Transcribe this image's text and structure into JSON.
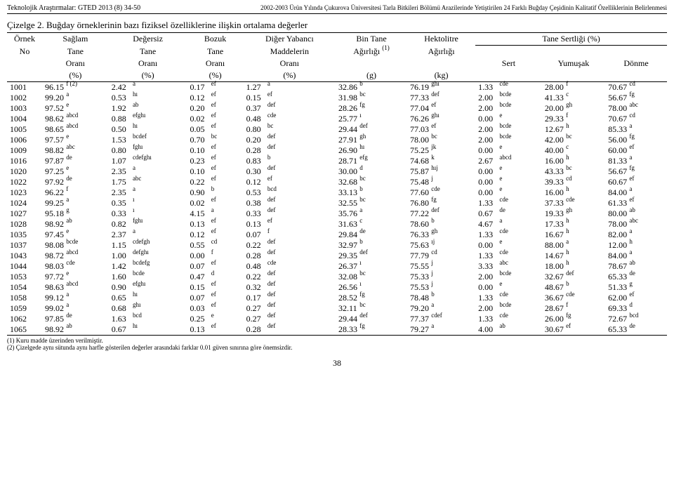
{
  "header": {
    "journal": "Teknolojik Araştırmalar: GTED 2013 (8) 34-50",
    "paper_title": "2002-2003 Ürün Yılında Çukurova Üniversitesi Tarla Bitkileri Bölümü Arazilerinde Yetiştirilen 24 Farklı Buğday Çeşidinin Kalitatif Özelliklerinin Belirlenmesi"
  },
  "caption_num": "Çizelge 2.",
  "caption_text": "Buğday örneklerinin bazı fiziksel özelliklerine ilişkin ortalama değerler",
  "columns": {
    "r1": [
      "Örnek",
      "Sağlam",
      "Değersiz",
      "Bozuk",
      "Diğer Yabancı",
      "Bin Tane",
      "Hektolitre",
      "Tane Sertliği (%)"
    ],
    "r2": [
      "No",
      "Tane",
      "Tane",
      "Tane",
      "Maddelerin",
      "Ağırlığı ",
      "Ağırlığı",
      ""
    ],
    "r2_sup": "(1)",
    "r3": [
      "",
      "Oranı",
      "Oranı",
      "Oranı",
      "Oranı",
      "",
      "",
      "Sert",
      "Yumuşak",
      "Dönme"
    ],
    "r4": [
      "",
      "(%)",
      "(%)",
      "(%)",
      "(%)",
      "(g)",
      "(kg)",
      "",
      "",
      ""
    ]
  },
  "rows": [
    {
      "no": "1001",
      "c": [
        [
          "96.15",
          "f (2)"
        ],
        [
          "2.42",
          "a"
        ],
        [
          "0.17",
          "ef"
        ],
        [
          "1.27",
          "a"
        ],
        [
          "32.86",
          "b"
        ],
        [
          "76.19",
          "ghı"
        ],
        [
          "1.33",
          "cde"
        ],
        [
          "28.00",
          "f"
        ],
        [
          "70.67",
          "cd"
        ]
      ]
    },
    {
      "no": "1002",
      "c": [
        [
          "99.20",
          "a"
        ],
        [
          "0.53",
          "hı"
        ],
        [
          "0.12",
          "ef"
        ],
        [
          "0.15",
          "ef"
        ],
        [
          "31.98",
          "bc"
        ],
        [
          "77.33",
          "def"
        ],
        [
          "2.00",
          "bcde"
        ],
        [
          "41.33",
          "c"
        ],
        [
          "56.67",
          "fg"
        ]
      ]
    },
    {
      "no": "1003",
      "c": [
        [
          "97.52",
          "e"
        ],
        [
          "1.92",
          "ab"
        ],
        [
          "0.20",
          "ef"
        ],
        [
          "0.37",
          "def"
        ],
        [
          "28.26",
          "fg"
        ],
        [
          "77.04",
          "ef"
        ],
        [
          "2.00",
          "bcde"
        ],
        [
          "20.00",
          "gh"
        ],
        [
          "78.00",
          "abc"
        ]
      ]
    },
    {
      "no": "1004",
      "c": [
        [
          "98.62",
          "abcd"
        ],
        [
          "0.88",
          "efghı"
        ],
        [
          "0.02",
          "ef"
        ],
        [
          "0.48",
          "cde"
        ],
        [
          "25.77",
          "ı"
        ],
        [
          "76.26",
          "ghı"
        ],
        [
          "0.00",
          "e"
        ],
        [
          "29.33",
          "f"
        ],
        [
          "70.67",
          "cd"
        ]
      ]
    },
    {
      "no": "1005",
      "c": [
        [
          "98.65",
          "abcd"
        ],
        [
          "0.50",
          "hı"
        ],
        [
          "0.05",
          "ef"
        ],
        [
          "0.80",
          "bc"
        ],
        [
          "29.44",
          "def"
        ],
        [
          "77.03",
          "ef"
        ],
        [
          "2.00",
          "bcde"
        ],
        [
          "12.67",
          "h"
        ],
        [
          "85.33",
          "a"
        ]
      ]
    },
    {
      "no": "1006",
      "c": [
        [
          "97.57",
          "e"
        ],
        [
          "1.53",
          "bcdef"
        ],
        [
          "0.70",
          "bc"
        ],
        [
          "0.20",
          "def"
        ],
        [
          "27.91",
          "gh"
        ],
        [
          "78.00",
          "bc"
        ],
        [
          "2.00",
          "bcde"
        ],
        [
          "42.00",
          "bc"
        ],
        [
          "56.00",
          "fg"
        ]
      ]
    },
    {
      "no": "1009",
      "c": [
        [
          "98.82",
          "abc"
        ],
        [
          "0.80",
          "fghı"
        ],
        [
          "0.10",
          "ef"
        ],
        [
          "0.28",
          "def"
        ],
        [
          "26.90",
          "hı"
        ],
        [
          "75.25",
          "jk"
        ],
        [
          "0.00",
          "e"
        ],
        [
          "40.00",
          "c"
        ],
        [
          "60.00",
          "ef"
        ]
      ]
    },
    {
      "no": "1016",
      "c": [
        [
          "97.87",
          "de"
        ],
        [
          "1.07",
          "cdefghı"
        ],
        [
          "0.23",
          "ef"
        ],
        [
          "0.83",
          "b"
        ],
        [
          "28.71",
          "efg"
        ],
        [
          "74.68",
          "k"
        ],
        [
          "2.67",
          "abcd"
        ],
        [
          "16.00",
          "h"
        ],
        [
          "81.33",
          "a"
        ]
      ]
    },
    {
      "no": "1020",
      "c": [
        [
          "97.25",
          "e"
        ],
        [
          "2.35",
          "a"
        ],
        [
          "0.10",
          "ef"
        ],
        [
          "0.30",
          "def"
        ],
        [
          "30.00",
          "d"
        ],
        [
          "75.87",
          "hıj"
        ],
        [
          "0.00",
          "e"
        ],
        [
          "43.33",
          "bc"
        ],
        [
          "56.67",
          "fg"
        ]
      ]
    },
    {
      "no": "1022",
      "c": [
        [
          "97.92",
          "de"
        ],
        [
          "1.75",
          "abc"
        ],
        [
          "0.22",
          "ef"
        ],
        [
          "0.12",
          "ef"
        ],
        [
          "32.68",
          "bc"
        ],
        [
          "75.48",
          "j"
        ],
        [
          "0.00",
          "e"
        ],
        [
          "39.33",
          "cd"
        ],
        [
          "60.67",
          "ef"
        ]
      ]
    },
    {
      "no": "1023",
      "c": [
        [
          "96.22",
          "f"
        ],
        [
          "2.35",
          "a"
        ],
        [
          "0.90",
          "b"
        ],
        [
          "0.53",
          "bcd"
        ],
        [
          "33.13",
          "b"
        ],
        [
          "77.60",
          "cde"
        ],
        [
          "0.00",
          "e"
        ],
        [
          "16.00",
          "h"
        ],
        [
          "84.00",
          "a"
        ]
      ]
    },
    {
      "no": "1024",
      "c": [
        [
          "99.25",
          "a"
        ],
        [
          "0.35",
          "ı"
        ],
        [
          "0.02",
          "ef"
        ],
        [
          "0.38",
          "def"
        ],
        [
          "32.55",
          "bc"
        ],
        [
          "76.80",
          "fg"
        ],
        [
          "1.33",
          "cde"
        ],
        [
          "37.33",
          "cde"
        ],
        [
          "61.33",
          "ef"
        ]
      ]
    },
    {
      "no": "1027",
      "c": [
        [
          "95.18",
          "g"
        ],
        [
          "0.33",
          "ı"
        ],
        [
          "4.15",
          "a"
        ],
        [
          "0.33",
          "def"
        ],
        [
          "35.76",
          "a"
        ],
        [
          "77.22",
          "def"
        ],
        [
          "0.67",
          "de"
        ],
        [
          "19.33",
          "gh"
        ],
        [
          "80.00",
          "ab"
        ]
      ]
    },
    {
      "no": "1028",
      "c": [
        [
          "98.92",
          "ab"
        ],
        [
          "0.82",
          "fghı"
        ],
        [
          "0.13",
          "ef"
        ],
        [
          "0.13",
          "ef"
        ],
        [
          "31.63",
          "c"
        ],
        [
          "78.60",
          "b"
        ],
        [
          "4.67",
          "a"
        ],
        [
          "17.33",
          "h"
        ],
        [
          "78.00",
          "abc"
        ]
      ]
    },
    {
      "no": "1035",
      "c": [
        [
          "97.45",
          "e"
        ],
        [
          "2.37",
          "a"
        ],
        [
          "0.12",
          "ef"
        ],
        [
          "0.07",
          "f"
        ],
        [
          "29.84",
          "de"
        ],
        [
          "76.33",
          "gh"
        ],
        [
          "1.33",
          "cde"
        ],
        [
          "16.67",
          "h"
        ],
        [
          "82.00",
          "a"
        ]
      ]
    },
    {
      "no": "1037",
      "c": [
        [
          "98.08",
          "bcde"
        ],
        [
          "1.15",
          "cdefgh"
        ],
        [
          "0.55",
          "cd"
        ],
        [
          "0.22",
          "def"
        ],
        [
          "32.97",
          "b"
        ],
        [
          "75.63",
          "ıj"
        ],
        [
          "0.00",
          "e"
        ],
        [
          "88.00",
          "a"
        ],
        [
          "12.00",
          "h"
        ]
      ]
    },
    {
      "no": "1043",
      "c": [
        [
          "98.72",
          "abcd"
        ],
        [
          "1.00",
          "defghı"
        ],
        [
          "0.00",
          "f"
        ],
        [
          "0.28",
          "def"
        ],
        [
          "29.35",
          "def"
        ],
        [
          "77.79",
          "cd"
        ],
        [
          "1.33",
          "cde"
        ],
        [
          "14.67",
          "h"
        ],
        [
          "84.00",
          "a"
        ]
      ]
    },
    {
      "no": "1044",
      "c": [
        [
          "98.03",
          "cde"
        ],
        [
          "1.42",
          "bcdefg"
        ],
        [
          "0.07",
          "ef"
        ],
        [
          "0.48",
          "cde"
        ],
        [
          "26.37",
          "ı"
        ],
        [
          "75.55",
          "j"
        ],
        [
          "3.33",
          "abc"
        ],
        [
          "18.00",
          "h"
        ],
        [
          "78.67",
          "ab"
        ]
      ]
    },
    {
      "no": "1053",
      "c": [
        [
          "97.72",
          "e"
        ],
        [
          "1.60",
          "bcde"
        ],
        [
          "0.47",
          "d"
        ],
        [
          "0.22",
          "def"
        ],
        [
          "32.08",
          "bc"
        ],
        [
          "75.33",
          "j"
        ],
        [
          "2.00",
          "bcde"
        ],
        [
          "32.67",
          "def"
        ],
        [
          "65.33",
          "de"
        ]
      ]
    },
    {
      "no": "1054",
      "c": [
        [
          "98.63",
          "abcd"
        ],
        [
          "0.90",
          "efghı"
        ],
        [
          "0.15",
          "ef"
        ],
        [
          "0.32",
          "def"
        ],
        [
          "26.56",
          "ı"
        ],
        [
          "75.53",
          "j"
        ],
        [
          "0.00",
          "e"
        ],
        [
          "48.67",
          "b"
        ],
        [
          "51.33",
          "g"
        ]
      ]
    },
    {
      "no": "1058",
      "c": [
        [
          "99.12",
          "a"
        ],
        [
          "0.65",
          "hı"
        ],
        [
          "0.07",
          "ef"
        ],
        [
          "0.17",
          "def"
        ],
        [
          "28.52",
          "fg"
        ],
        [
          "78.48",
          "b"
        ],
        [
          "1.33",
          "cde"
        ],
        [
          "36.67",
          "cde"
        ],
        [
          "62.00",
          "ef"
        ]
      ]
    },
    {
      "no": "1059",
      "c": [
        [
          "99.02",
          "a"
        ],
        [
          "0.68",
          "ghı"
        ],
        [
          "0.03",
          "ef"
        ],
        [
          "0.27",
          "def"
        ],
        [
          "32.11",
          "bc"
        ],
        [
          "79.20",
          "a"
        ],
        [
          "2.00",
          "bcde"
        ],
        [
          "28.67",
          "f"
        ],
        [
          "69.33",
          "d"
        ]
      ]
    },
    {
      "no": "1062",
      "c": [
        [
          "97.85",
          "de"
        ],
        [
          "1.63",
          "bcd"
        ],
        [
          "0.25",
          "e"
        ],
        [
          "0.27",
          "def"
        ],
        [
          "29.44",
          "def"
        ],
        [
          "77.37",
          "cdef"
        ],
        [
          "1.33",
          "cde"
        ],
        [
          "26.00",
          "fg"
        ],
        [
          "72.67",
          "bcd"
        ]
      ]
    },
    {
      "no": "1065",
      "c": [
        [
          "98.92",
          "ab"
        ],
        [
          "0.67",
          "hı"
        ],
        [
          "0.13",
          "ef"
        ],
        [
          "0.28",
          "def"
        ],
        [
          "28.33",
          "fg"
        ],
        [
          "79.27",
          "a"
        ],
        [
          "4.00",
          "ab"
        ],
        [
          "30.67",
          "ef"
        ],
        [
          "65.33",
          "de"
        ]
      ]
    }
  ],
  "footnotes": [
    "(1) Kuru madde üzerinden verilmiştir.",
    "(2) Çizelgede aynı sütunda aynı harfle gösterilen değerler arasındaki farklar 0.01 güven sınırına göre önemsizdir."
  ],
  "page_number": "38"
}
